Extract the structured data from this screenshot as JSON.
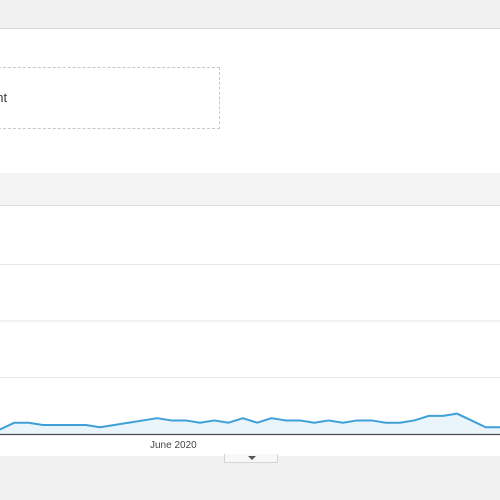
{
  "segment": {
    "label": "ent"
  },
  "colors": {
    "series_line": "#3f9fd8",
    "series_fill": "#eaf5fb",
    "gridline": "#e6e6e6",
    "axis": "#4a4a4a"
  },
  "chart_data": {
    "type": "area",
    "title": "",
    "xlabel": "",
    "ylabel": "",
    "ylim": [
      0,
      100
    ],
    "grid": true,
    "x_tick_labels": [
      {
        "label": "June 2020",
        "index": 14
      }
    ],
    "series": [
      {
        "values": [
          2,
          5,
          5,
          4,
          4,
          4,
          4,
          3,
          4,
          5,
          6,
          7,
          6,
          6,
          5,
          6,
          5,
          7,
          5,
          7,
          6,
          6,
          5,
          6,
          5,
          6,
          6,
          5,
          5,
          6,
          8,
          8,
          9,
          6,
          3,
          3
        ]
      }
    ]
  },
  "ui": {
    "expand_icon": "caret-down-icon"
  }
}
